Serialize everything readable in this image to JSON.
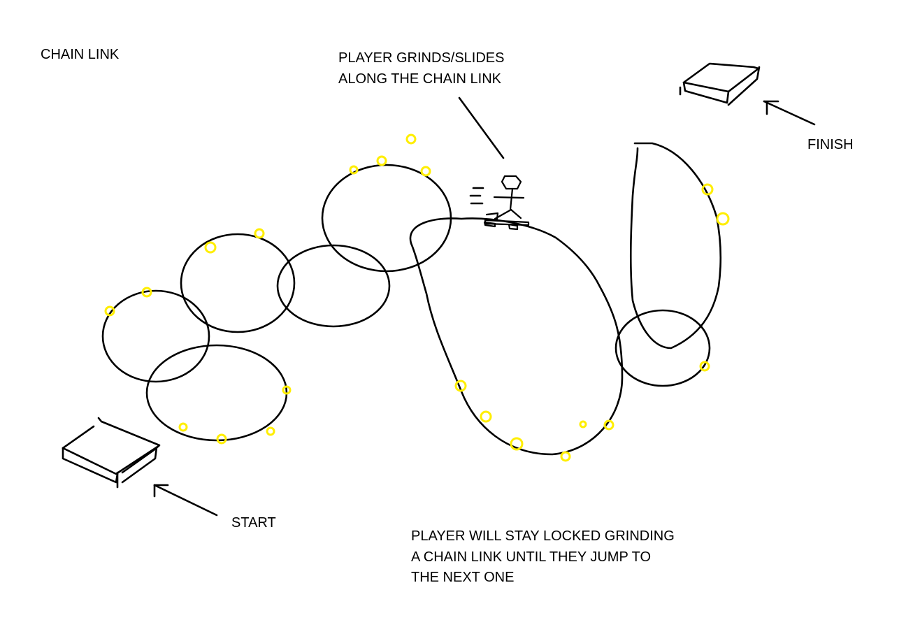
{
  "labels": {
    "title": "CHAIN LINK",
    "grind_note_line1": "PLAYER GRINDS/SLIDES",
    "grind_note_line2": "ALONG THE CHAIN LINK",
    "finish": "FINISH",
    "start": "START",
    "locked_note_line1": "PLAYER WILL STAY LOCKED GRINDING",
    "locked_note_line2": "A CHAIN LINK UNTIL THEY JUMP TO",
    "locked_note_line3": "THE NEXT ONE"
  },
  "colors": {
    "ink": "#000000",
    "coin": "#ffee00",
    "background": "#ffffff"
  }
}
